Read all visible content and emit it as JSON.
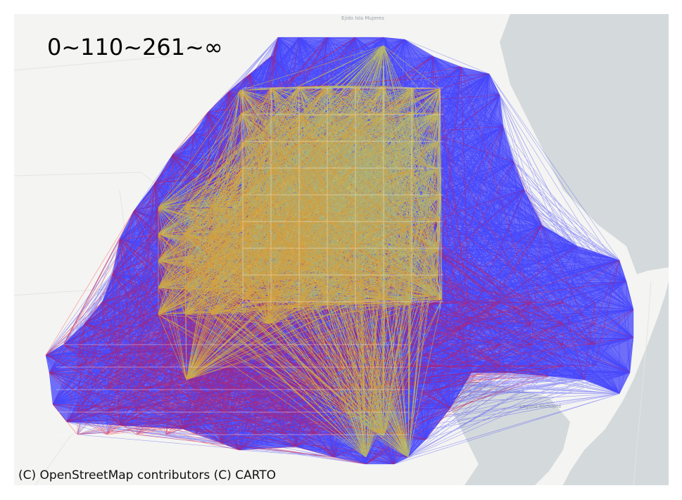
{
  "legend": {
    "range_label": "0~110~261~∞",
    "bins": [
      {
        "min": 0,
        "max": 110,
        "color": "#0000ff"
      },
      {
        "min": 110,
        "max": 261,
        "color": "#ff0000"
      },
      {
        "min": 261,
        "max": null,
        "color": "#ffff00"
      }
    ]
  },
  "attribution": "(C) OpenStreetMap contributors (C) CARTO",
  "place_labels": {
    "north": "Ejido Isla Mujeres",
    "lagoon": "Laguna Nichupté"
  },
  "colors": {
    "land": "#f4f4f2",
    "water": "#d4d9dc",
    "low_band": "#0000ff",
    "mid_band": "#ff0000",
    "high_band": "#ffff00",
    "grid_lines": "#ffffff"
  }
}
